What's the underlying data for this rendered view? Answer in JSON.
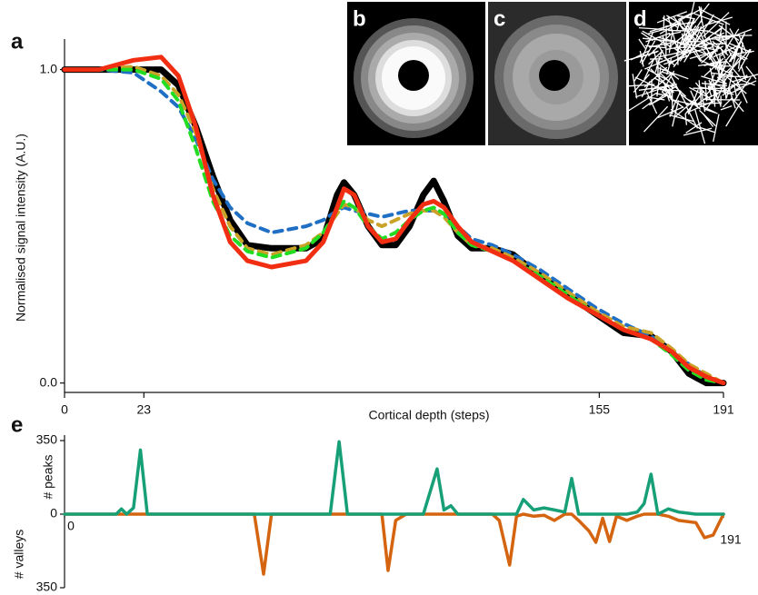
{
  "insets": [
    {
      "label": "b"
    },
    {
      "label": "c"
    },
    {
      "label": "d"
    }
  ],
  "chart_data": [
    {
      "type": "line",
      "panel_label": "a",
      "xlabel": "Cortical depth (steps)",
      "ylabel": "Normalised signal intensity (A.U.)",
      "xlim": [
        0,
        191
      ],
      "xticks": [
        0,
        23,
        155,
        191
      ],
      "ylim": [
        -0.03,
        1.08
      ],
      "yticks": [
        {
          "value": 0,
          "label": "0.0"
        },
        {
          "value": 1,
          "label": "1.0"
        }
      ],
      "x": [
        0,
        10,
        20,
        28,
        33,
        38,
        43,
        48,
        53,
        60,
        70,
        75,
        79,
        81,
        84,
        88,
        92,
        96,
        100,
        104,
        107,
        110,
        114,
        118,
        124,
        130,
        138,
        146,
        154,
        162,
        170,
        176,
        181,
        186,
        191
      ],
      "series": [
        {
          "color": "#000000",
          "line_style": "solid",
          "width": 7,
          "values": [
            1,
            1,
            1,
            1,
            0.95,
            0.82,
            0.66,
            0.52,
            0.44,
            0.43,
            0.43,
            0.46,
            0.6,
            0.64,
            0.6,
            0.5,
            0.44,
            0.44,
            0.5,
            0.6,
            0.645,
            0.58,
            0.47,
            0.43,
            0.43,
            0.41,
            0.34,
            0.28,
            0.22,
            0.16,
            0.15,
            0.1,
            0.03,
            0,
            0
          ]
        },
        {
          "color": "#1f6fc4",
          "line_style": "dashed",
          "width": 4,
          "values": [
            1,
            1,
            0.99,
            0.93,
            0.88,
            0.78,
            0.65,
            0.56,
            0.51,
            0.48,
            0.5,
            0.52,
            0.55,
            0.56,
            0.55,
            0.54,
            0.53,
            0.54,
            0.55,
            0.55,
            0.55,
            0.54,
            0.5,
            0.46,
            0.44,
            0.41,
            0.36,
            0.3,
            0.24,
            0.19,
            0.15,
            0.1,
            0.06,
            0.02,
            0
          ]
        },
        {
          "color": "#c9a227",
          "line_style": "dashed",
          "width": 4,
          "values": [
            1,
            1,
            1.01,
            0.98,
            0.92,
            0.8,
            0.62,
            0.5,
            0.43,
            0.41,
            0.44,
            0.48,
            0.54,
            0.57,
            0.56,
            0.52,
            0.5,
            0.52,
            0.54,
            0.55,
            0.55,
            0.53,
            0.48,
            0.44,
            0.43,
            0.4,
            0.35,
            0.29,
            0.23,
            0.18,
            0.16,
            0.11,
            0.06,
            0.03,
            0
          ]
        },
        {
          "color": "#22dd22",
          "line_style": "dashed",
          "width": 4,
          "values": [
            1,
            1,
            1,
            0.97,
            0.9,
            0.75,
            0.58,
            0.47,
            0.42,
            0.4,
            0.43,
            0.48,
            0.55,
            0.58,
            0.56,
            0.5,
            0.46,
            0.48,
            0.52,
            0.55,
            0.56,
            0.54,
            0.48,
            0.44,
            0.42,
            0.39,
            0.34,
            0.28,
            0.22,
            0.17,
            0.14,
            0.09,
            0.04,
            0.01,
            0
          ]
        },
        {
          "color": "#f22e12",
          "line_style": "solid",
          "width": 5,
          "values": [
            1,
            1,
            1.03,
            1.04,
            0.98,
            0.82,
            0.6,
            0.45,
            0.39,
            0.37,
            0.39,
            0.45,
            0.56,
            0.62,
            0.6,
            0.5,
            0.45,
            0.46,
            0.52,
            0.57,
            0.58,
            0.56,
            0.5,
            0.45,
            0.42,
            0.39,
            0.33,
            0.27,
            0.22,
            0.17,
            0.14,
            0.1,
            0.05,
            0.02,
            0
          ]
        }
      ]
    },
    {
      "type": "line",
      "panel_label": "e",
      "ylabel_top": "# peaks",
      "ylabel_bottom": "# valleys",
      "xlim": [
        0,
        191
      ],
      "xticks": [
        0,
        191
      ],
      "ylim": [
        -350,
        350
      ],
      "yticks": [
        {
          "value": -350,
          "label": "350"
        },
        0,
        350
      ],
      "x": [
        0,
        15,
        16.5,
        18,
        20,
        22,
        24,
        55,
        57.7,
        60,
        77,
        79.6,
        82,
        92,
        93.8,
        96,
        99,
        104,
        108,
        110,
        112,
        114,
        124,
        126,
        129,
        131,
        133,
        136,
        139,
        142,
        145,
        147,
        149,
        152,
        154,
        156,
        158,
        160,
        163,
        166,
        168,
        170,
        172,
        175,
        178,
        183,
        185.5,
        188,
        191
      ],
      "series": [
        {
          "color": "#d4640f",
          "line_style": "solid",
          "width": 3.5,
          "values": [
            0,
            0,
            0,
            0,
            0,
            0,
            0,
            0,
            -285,
            0,
            0,
            0,
            0,
            0,
            -268,
            -30,
            0,
            0,
            0,
            0,
            0,
            0,
            0,
            -30,
            -242,
            -10,
            0,
            -10,
            -5,
            -30,
            0,
            0,
            -30,
            -80,
            -134,
            -20,
            -130,
            -10,
            -30,
            -10,
            0,
            0,
            0,
            -10,
            -30,
            -40,
            -112,
            -100,
            0
          ]
        },
        {
          "color": "#17a077",
          "line_style": "solid",
          "width": 3.5,
          "values": [
            0,
            0,
            25,
            0,
            30,
            305,
            0,
            0,
            0,
            0,
            0,
            345,
            0,
            0,
            0,
            0,
            0,
            0,
            215,
            20,
            40,
            0,
            0,
            0,
            0,
            0,
            70,
            20,
            30,
            20,
            10,
            170,
            0,
            0,
            0,
            0,
            0,
            0,
            0,
            10,
            50,
            190,
            0,
            25,
            10,
            0,
            0,
            0,
            0
          ]
        }
      ]
    }
  ]
}
